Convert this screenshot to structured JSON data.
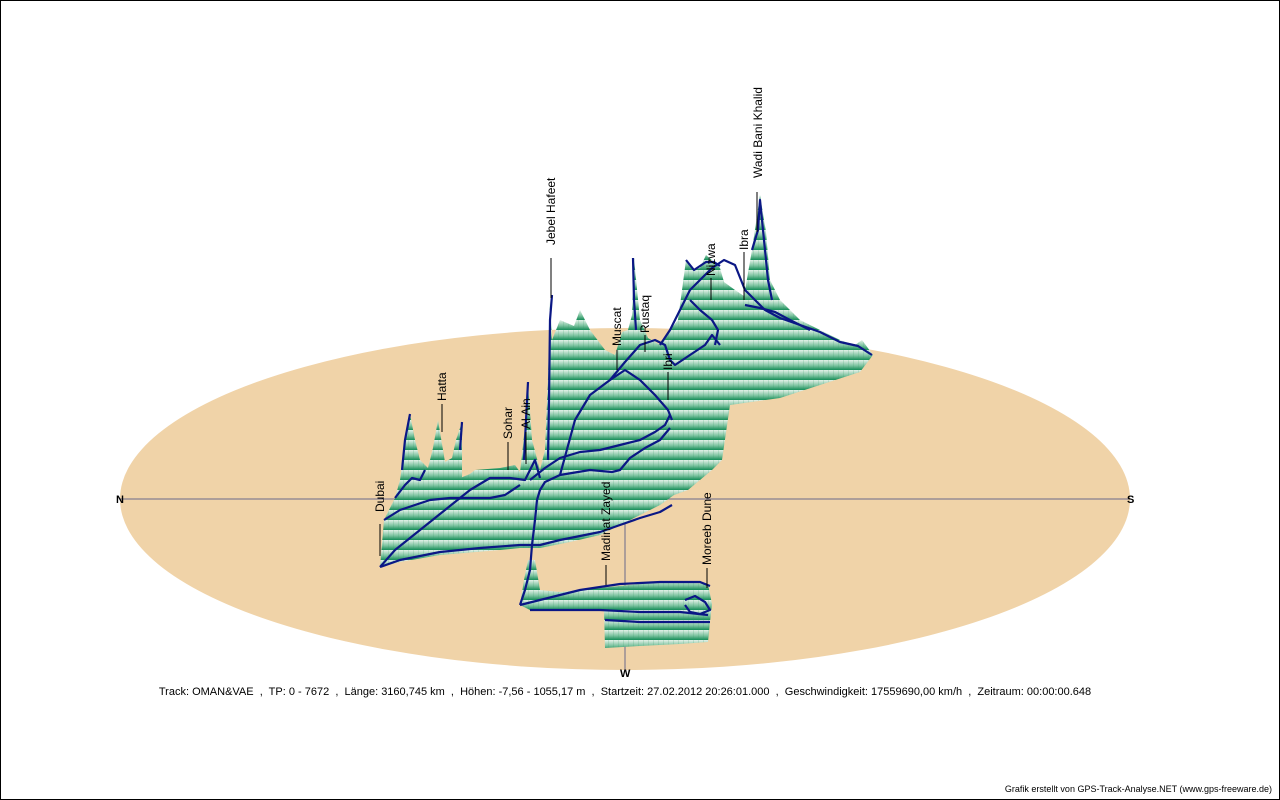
{
  "colors": {
    "ellipse_fill": "#f0d3a8",
    "track_line": "#0b1785",
    "surface_top": "#d8ece0",
    "surface_bottom": "#158c58",
    "label_line": "#000000"
  },
  "compass": {
    "north": "N",
    "south": "S",
    "west": "W"
  },
  "places": [
    {
      "name": "Dubai"
    },
    {
      "name": "Hatta"
    },
    {
      "name": "Sohar"
    },
    {
      "name": "Al Ain"
    },
    {
      "name": "Jebel Hafeet"
    },
    {
      "name": "Muscat"
    },
    {
      "name": "Rustaq"
    },
    {
      "name": "Ibri"
    },
    {
      "name": "Nizwa"
    },
    {
      "name": "Ibra"
    },
    {
      "name": "Wadi Bani Khalid"
    },
    {
      "name": "Madinat Zayed"
    },
    {
      "name": "Moreeb Dune"
    }
  ],
  "info": {
    "text": "Track: OMAN&VAE  ,  TP: 0 - 7672  ,  Länge: 3160,745 km  ,  Höhen: -7,56 - 1055,17 m  ,  Startzeit: 27.02.2012 20:26:01.000  ,  Geschwindigkeit: 17559690,00 km/h  ,  Zeitraum: 00:00:00.648"
  },
  "credit": "Grafik erstellt von GPS-Track-Analyse.NET (www.gps-freeware.de)"
}
